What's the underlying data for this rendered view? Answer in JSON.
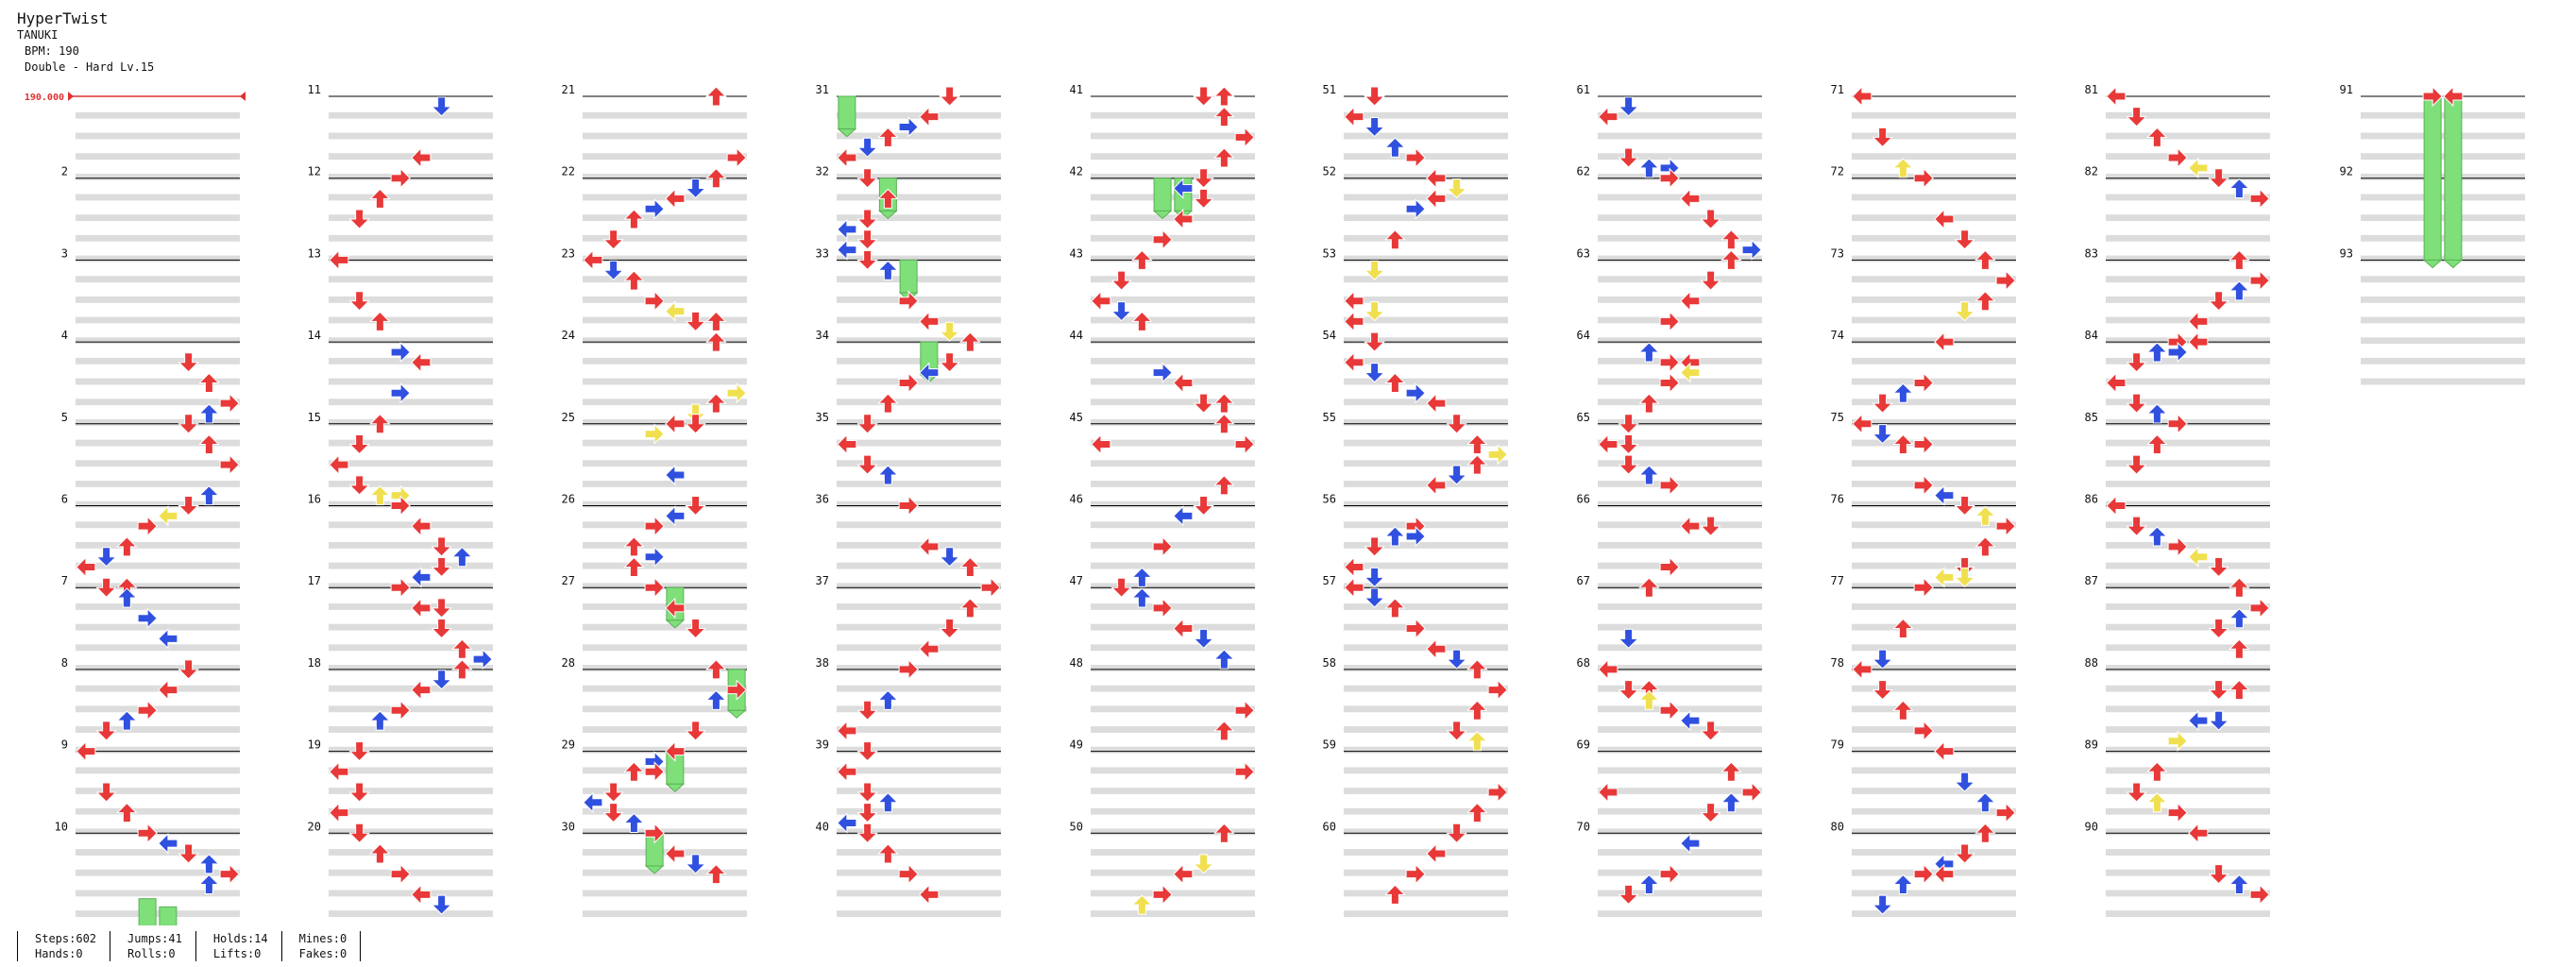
{
  "song": {
    "title": "HyperTwist",
    "artist": "TANUKI",
    "bpm_text": "BPM: 190",
    "difficulty_text": "Double - Hard Lv.15"
  },
  "chart": {
    "measures": 93,
    "measures_per_column": 10,
    "columns": 10,
    "bpm_marker": {
      "label": "190.000",
      "color": "#e03030"
    }
  },
  "colors": {
    "red_arrow": "#e83838",
    "blue_arrow": "#3050e0",
    "yellow_arrow": "#f0e050",
    "hold_body": "#7fe07a",
    "row_shade": "#dcdcdc",
    "measure_line": "#000000"
  },
  "stats": {
    "steps": "Steps:602",
    "hands": "Hands:0",
    "jumps": "Jumps:41",
    "rolls": "Rolls:0",
    "holds": "Holds:14",
    "lifts": "Lifts:0",
    "mines": "Mines:0",
    "fakes": "Fakes:0"
  }
}
